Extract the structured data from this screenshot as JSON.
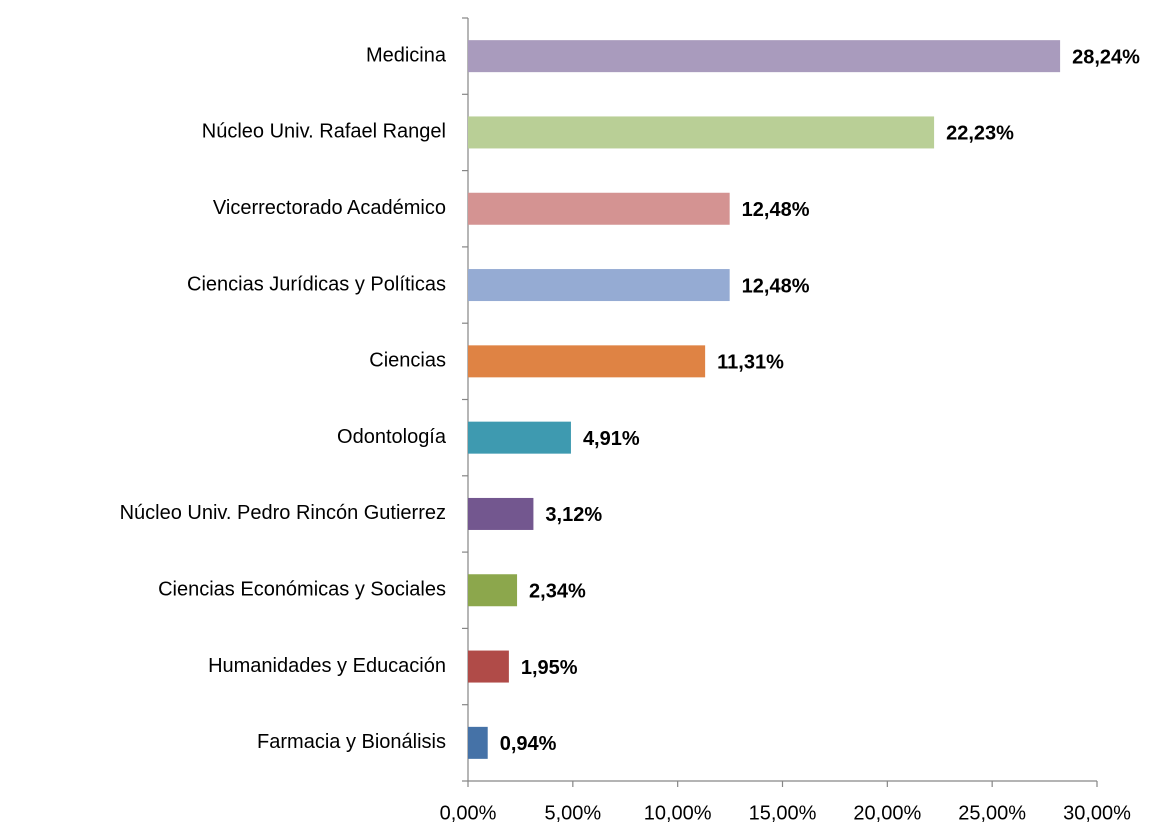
{
  "chart_data": {
    "type": "barh",
    "categories": [
      "Medicina",
      "Núcleo Univ. Rafael Rangel",
      "Vicerrectorado Académico",
      "Ciencias Jurídicas y Políticas",
      "Ciencias",
      "Odontología",
      "Núcleo Univ. Pedro Rincón Gutierrez",
      "Ciencias Económicas y Sociales",
      "Humanidades y Educación",
      "Farmacia y Bionálisis"
    ],
    "values": [
      28.24,
      22.23,
      12.48,
      12.48,
      11.31,
      4.91,
      3.12,
      2.34,
      1.95,
      0.94
    ],
    "value_labels": [
      "28,24%",
      "22,23%",
      "12,48%",
      "12,48%",
      "11,31%",
      "4,91%",
      "3,12%",
      "2,34%",
      "1,95%",
      "0,94%"
    ],
    "colors": [
      "#a99bbd",
      "#b9cf96",
      "#d49392",
      "#95abd3",
      "#df8344",
      "#3e9ab0",
      "#73578f",
      "#8ca74c",
      "#b04b48",
      "#4572a7"
    ],
    "xlim": [
      0,
      30
    ],
    "xticks": [
      {
        "value": 0,
        "label": "0,00%"
      },
      {
        "value": 5,
        "label": "5,00%"
      },
      {
        "value": 10,
        "label": "10,00%"
      },
      {
        "value": 15,
        "label": "15,00%"
      },
      {
        "value": 20,
        "label": "20,00%"
      },
      {
        "value": 25,
        "label": "25,00%"
      },
      {
        "value": 30,
        "label": "30,00%"
      }
    ]
  }
}
